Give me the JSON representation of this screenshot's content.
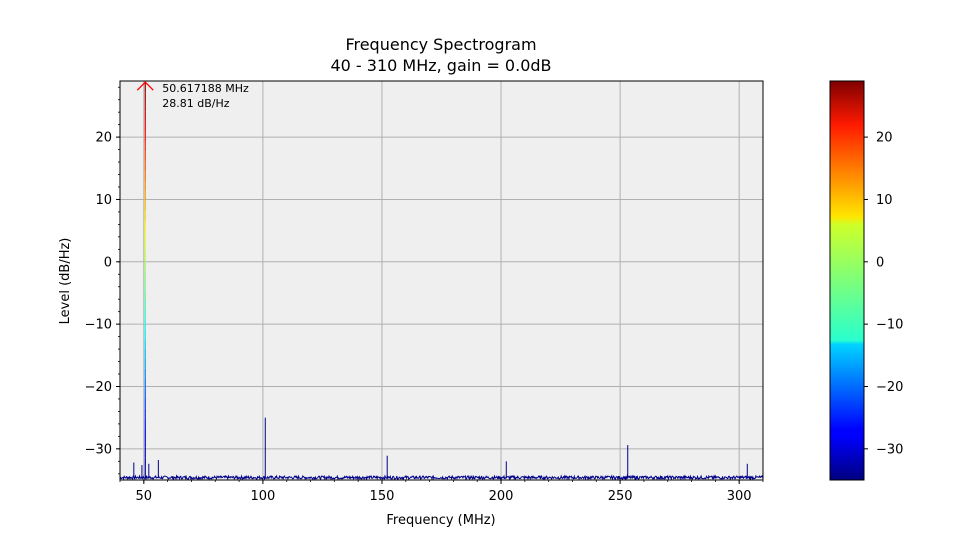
{
  "chart_data": {
    "type": "line",
    "title": "Frequency Spectrogram",
    "subtitle": "40 - 310 MHz, gain = 0.0dB",
    "xlabel": "Frequency (MHz)",
    "ylabel": "Level (dB/Hz)",
    "xlim": [
      40,
      310
    ],
    "ylim": [
      -35,
      29
    ],
    "x_ticks": [
      50,
      100,
      150,
      200,
      250,
      300
    ],
    "y_ticks": [
      -30,
      -20,
      -10,
      0,
      10,
      20
    ],
    "grid": true,
    "noise_floor": -34.6,
    "peaks": [
      {
        "x": 45.8,
        "y": -32.2
      },
      {
        "x": 49.2,
        "y": -32.6
      },
      {
        "x": 50.617188,
        "y": 28.81
      },
      {
        "x": 52.1,
        "y": -32.4
      },
      {
        "x": 56.1,
        "y": -31.8
      },
      {
        "x": 101.0,
        "y": -25.0
      },
      {
        "x": 152.2,
        "y": -31.1
      },
      {
        "x": 202.2,
        "y": -32.0
      },
      {
        "x": 253.2,
        "y": -29.4
      },
      {
        "x": 303.4,
        "y": -32.4
      }
    ],
    "marker": {
      "x": 50.617188,
      "y": 28.81,
      "label_freq": "50.617188 MHz",
      "label_level": "28.81 dB/Hz"
    },
    "colorbar": {
      "colormap": "jet",
      "range": [
        -35,
        29
      ],
      "ticks": [
        -30,
        -20,
        -10,
        0,
        10,
        20
      ]
    },
    "colors": {
      "plot_background": "#efefef",
      "grid": "#b0b0b0",
      "trace": "#00008b",
      "marker": "#ff0000"
    }
  }
}
